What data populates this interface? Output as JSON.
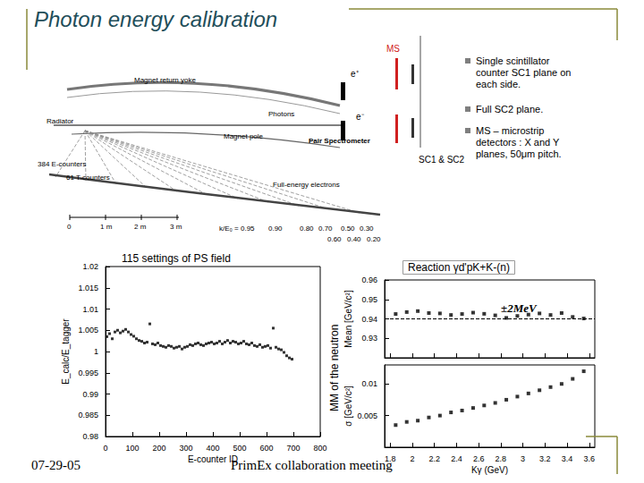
{
  "slide": {
    "title": "Photon energy calibration",
    "footer_date": "07-29-05",
    "footer_text": "PrimEx collaboration meeting",
    "bullets": [
      [
        "Single scintillator",
        "counter SC1 plane on",
        "each side."
      ],
      [
        "Full SC2 plane."
      ],
      [
        "MS – microstrip",
        "detectors : X and Y",
        "planes, 50μm pitch."
      ]
    ],
    "tagger_labels": [
      "Magnet return yoke",
      "Photons",
      "Radiator",
      "Magnet pole",
      "384 E-counters",
      "61 T-counters",
      "Full-energy electrons",
      "Pair Spectrometer"
    ],
    "scale_labels": [
      "0",
      "1 m",
      "2 m",
      "3 m"
    ],
    "k_labels": [
      "k/E₀ = 0.95",
      "0.90",
      "0.80",
      "0.70",
      "0.50",
      "0.30",
      "0.60",
      "0.40",
      "0.20"
    ],
    "spectrometer_labels": [
      "MS",
      "e⁺",
      "e⁻",
      "SC1 & SC2"
    ]
  },
  "chart_data": [
    {
      "type": "scatter",
      "title": "115 settings of PS field",
      "x_label": "E-counter ID",
      "y_label": "E_calc/E_tagger",
      "x": [
        5,
        15,
        25,
        35,
        45,
        55,
        65,
        75,
        85,
        95,
        105,
        115,
        125,
        135,
        145,
        155,
        165,
        175,
        185,
        195,
        205,
        215,
        225,
        235,
        245,
        255,
        265,
        275,
        285,
        295,
        305,
        315,
        325,
        335,
        345,
        355,
        365,
        375,
        385,
        395,
        405,
        415,
        425,
        435,
        445,
        455,
        465,
        475,
        485,
        495,
        505,
        515,
        525,
        535,
        545,
        555,
        565,
        575,
        585,
        595,
        605,
        615,
        625,
        635,
        645,
        655,
        665,
        675,
        685,
        695
      ],
      "values": [
        1.0035,
        1.0042,
        1.003,
        1.0046,
        1.005,
        1.0044,
        1.0048,
        1.0052,
        1.0046,
        1.004,
        1.0036,
        1.003,
        1.0026,
        1.0024,
        1.002,
        1.0022,
        1.0065,
        1.0018,
        1.0016,
        1.002,
        1.0014,
        1.0012,
        1.001,
        1.0014,
        1.0012,
        1.0008,
        1.001,
        1.0012,
        1.0006,
        1.001,
        1.0012,
        1.0016,
        1.0014,
        1.0018,
        1.002,
        1.0016,
        1.0014,
        1.0018,
        1.002,
        1.0022,
        1.0018,
        1.002,
        1.0024,
        1.0018,
        1.0022,
        1.0026,
        1.002,
        1.0024,
        1.0022,
        1.0018,
        1.002,
        1.0024,
        1.0018,
        1.0016,
        1.002,
        1.0014,
        1.0012,
        1.0016,
        1.001,
        1.0012,
        1.0014,
        1.0008,
        1.0055,
        1.001,
        1.0006,
        1.0004,
        0.9998,
        0.999,
        0.9985,
        0.9982
      ],
      "xlim": [
        0,
        800
      ],
      "xticks": [
        0,
        100,
        200,
        300,
        400,
        500,
        600,
        700,
        800
      ],
      "ylim": [
        0.98,
        1.02
      ],
      "yticks": [
        0.98,
        0.985,
        0.99,
        0.995,
        1,
        1.005,
        1.01,
        1.015,
        1.02
      ],
      "color": "#000000",
      "marker": "square",
      "grid": false
    },
    {
      "type": "scatter",
      "title": "Reaction γd'pK+K-(n)",
      "subtitle": "MM of the neutron",
      "y_label": "Mean [GeV/c²]",
      "x": [
        1.85,
        1.95,
        2.05,
        2.15,
        2.25,
        2.35,
        2.45,
        2.55,
        2.65,
        2.75,
        2.85,
        2.95,
        3.05,
        3.15,
        3.25,
        3.35,
        3.45,
        3.55
      ],
      "values": [
        0.9425,
        0.9435,
        0.944,
        0.943,
        0.9428,
        0.942,
        0.9425,
        0.9432,
        0.9426,
        0.9418,
        0.9405,
        0.9415,
        0.9422,
        0.9428,
        0.942,
        0.943,
        0.941,
        0.9402
      ],
      "reference_line": 0.94,
      "annotations": [
        {
          "text": "±2MeV"
        }
      ],
      "xlim": [
        1.75,
        3.65
      ],
      "xticks": [
        1.8,
        2,
        2.2,
        2.4,
        2.6,
        2.8,
        3,
        3.2,
        3.4,
        3.6
      ],
      "ylim": [
        0.92,
        0.96
      ],
      "yticks": [
        0.93,
        0.94,
        0.95,
        0.96
      ],
      "color": "#000000",
      "marker": "square",
      "grid": false,
      "tick_labels": "y"
    },
    {
      "type": "scatter",
      "x_label": "Kγ (GeV)",
      "y_label": "σ [GeV/c²]",
      "x": [
        1.85,
        1.95,
        2.05,
        2.15,
        2.25,
        2.35,
        2.45,
        2.55,
        2.65,
        2.75,
        2.85,
        2.95,
        3.05,
        3.15,
        3.25,
        3.35,
        3.45,
        3.55
      ],
      "values": [
        0.0035,
        0.004,
        0.0042,
        0.0047,
        0.005,
        0.0055,
        0.0058,
        0.0062,
        0.0066,
        0.007,
        0.0075,
        0.008,
        0.0085,
        0.009,
        0.0095,
        0.01,
        0.0108,
        0.012
      ],
      "xlim": [
        1.75,
        3.65
      ],
      "xticks": [
        1.8,
        2,
        2.2,
        2.4,
        2.6,
        2.8,
        3,
        3.2,
        3.4,
        3.6
      ],
      "ylim": [
        0,
        0.013
      ],
      "yticks": [
        0.005,
        0.01
      ],
      "color": "#000000",
      "marker": "square",
      "grid": false
    }
  ]
}
